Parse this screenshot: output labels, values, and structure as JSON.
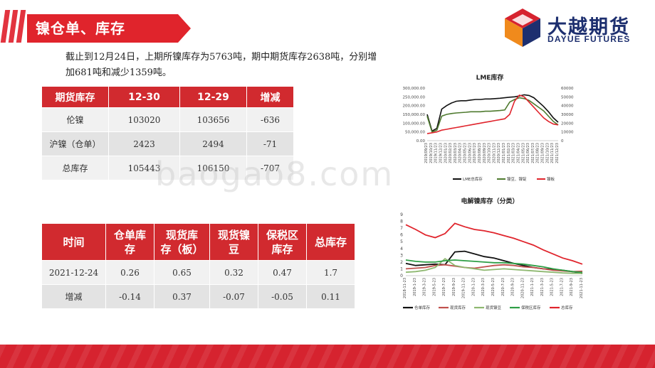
{
  "header": {
    "title": "镍仓单、库存"
  },
  "logo": {
    "cn": "大越期货",
    "en": "DAYUE FUTURES"
  },
  "intro": {
    "line1": "截止到12月24日，上期所镍库存为5763吨，期中期货库存2638吨，分别增",
    "line2": "加681吨和减少1359吨。"
  },
  "futures_table": {
    "headers": [
      "期货库存",
      "12-30",
      "12-29",
      "增减"
    ],
    "rows": [
      [
        "伦镍",
        "103020",
        "103656",
        "-636"
      ],
      [
        "沪镍（仓单）",
        "2423",
        "2494",
        "-71"
      ],
      [
        "总库存",
        "105443",
        "106150",
        "-707"
      ]
    ]
  },
  "spot_table": {
    "headers": [
      [
        "时间"
      ],
      [
        "仓单库",
        "存"
      ],
      [
        "现货库",
        "存（板）"
      ],
      [
        "现货镍",
        "豆"
      ],
      [
        "保税区",
        "库存"
      ],
      [
        "总库存"
      ]
    ],
    "rows": [
      [
        "2021-12-24",
        "0.26",
        "0.65",
        "0.32",
        "0.47",
        "1.7"
      ],
      [
        "增减",
        "-0.14",
        "0.37",
        "-0.07",
        "-0.05",
        "0.11"
      ]
    ]
  },
  "watermark": "baogao8.com",
  "colors": {
    "brand_red": "#d6232f",
    "table_header": "#d12a2f",
    "logo_blue": "#1d2f6f",
    "logo_orange": "#f08a1c"
  },
  "chart_data": [
    {
      "type": "line",
      "title": "LME库存",
      "y_left_ticks": [
        "300,000.00",
        "250,000.00",
        "200,000.00",
        "150,000.00",
        "100,000.00",
        "50,000.00",
        "0.00"
      ],
      "y_right_ticks": [
        "60000",
        "50000",
        "40000",
        "30000",
        "20000",
        "10000",
        "0"
      ],
      "ylim_left": [
        0,
        300000
      ],
      "ylim_right": [
        0,
        60000
      ],
      "x_labels": [
        "2019/09/23",
        "2019/10/23",
        "2019/11/23",
        "2019/12/23",
        "2020/01/23",
        "2020/02/23",
        "2020/03/23",
        "2020/04/23",
        "2020/05/23",
        "2020/06/23",
        "2020/07/23",
        "2020/08/23",
        "2020/09/23",
        "2020/10/23",
        "2020/11/23",
        "2020/12/23",
        "2021/01/23",
        "2021/02/23",
        "2021/03/23",
        "2021/04/23",
        "2021/05/23",
        "2021/06/23",
        "2021/07/23",
        "2021/08/23",
        "2021/09/23",
        "2021/10/23",
        "2021/11/23",
        "2021/12/23"
      ],
      "legend": [
        "LME总库存",
        "镍豆、镍锭",
        "镍板"
      ],
      "series": [
        {
          "name": "LME总库存",
          "axis": "left",
          "color": "#111111",
          "values": [
            150000,
            55000,
            70000,
            180000,
            200000,
            215000,
            225000,
            228000,
            228000,
            232000,
            235000,
            235000,
            238000,
            238000,
            240000,
            242000,
            245000,
            248000,
            250000,
            255000,
            262000,
            258000,
            245000,
            220000,
            195000,
            165000,
            130000,
            105000
          ]
        },
        {
          "name": "镍豆、镍锭",
          "axis": "left",
          "color": "#4e7a2e",
          "values": [
            140000,
            50000,
            60000,
            140000,
            150000,
            155000,
            158000,
            160000,
            162000,
            165000,
            165000,
            165000,
            168000,
            168000,
            170000,
            172000,
            175000,
            220000,
            235000,
            245000,
            240000,
            230000,
            210000,
            190000,
            170000,
            140000,
            110000,
            90000
          ]
        },
        {
          "name": "镍板",
          "axis": "right",
          "color": "#e0242c",
          "values": [
            8000,
            9000,
            10000,
            12000,
            13000,
            14000,
            15000,
            16000,
            17000,
            18000,
            19000,
            20000,
            21000,
            22000,
            23000,
            24000,
            25000,
            30000,
            45000,
            52000,
            50000,
            44000,
            38000,
            32000,
            26000,
            22000,
            19000,
            18000
          ]
        }
      ]
    },
    {
      "type": "line",
      "title": "电解镍库存（分类）",
      "y_ticks": [
        "9",
        "8",
        "7",
        "6",
        "5",
        "4",
        "3",
        "2",
        "1",
        "0"
      ],
      "ylim": [
        0,
        9
      ],
      "x_labels": [
        "2018-11-23",
        "2019-1-23",
        "2019-3-23",
        "2019-5-23",
        "2019-7-23",
        "2019-9-23",
        "2019-11-23",
        "2020-1-23",
        "2020-3-23",
        "2020-5-23",
        "2020-7-23",
        "2020-9-23",
        "2020-11-23",
        "2021-1-23",
        "2021-3-23",
        "2021-5-23",
        "2021-7-23",
        "2021-9-23",
        "2021-11-23"
      ],
      "legend": [
        "仓单库存",
        "现货库存",
        "现货镍豆",
        "保税区库存",
        "总库存"
      ],
      "series": [
        {
          "name": "仓单库存",
          "color": "#111111",
          "values": [
            1.8,
            1.5,
            1.6,
            1.7,
            1.6,
            3.5,
            3.6,
            3.2,
            2.8,
            2.6,
            2.2,
            1.8,
            1.5,
            1.2,
            1.0,
            0.9,
            0.8,
            0.6,
            0.3
          ]
        },
        {
          "name": "现货库存",
          "color": "#c0504d",
          "values": [
            1.0,
            1.1,
            1.2,
            1.5,
            1.6,
            1.4,
            1.2,
            1.1,
            1.3,
            1.5,
            1.6,
            1.5,
            1.3,
            1.2,
            1.0,
            0.8,
            0.7,
            0.6,
            0.65
          ]
        },
        {
          "name": "现货镍豆",
          "color": "#8eb870",
          "values": [
            0.5,
            0.6,
            0.8,
            1.2,
            2.5,
            1.5,
            1.2,
            1.0,
            0.8,
            0.9,
            1.0,
            0.9,
            0.8,
            0.7,
            0.6,
            0.5,
            0.4,
            0.35,
            0.32
          ]
        },
        {
          "name": "保税区库存",
          "color": "#2e9e45",
          "values": [
            2.3,
            2.1,
            2.0,
            2.0,
            2.2,
            2.3,
            2.2,
            2.1,
            2.0,
            1.9,
            1.9,
            1.8,
            1.7,
            1.5,
            1.3,
            1.0,
            0.8,
            0.6,
            0.47
          ]
        },
        {
          "name": "总库存",
          "color": "#e0242c",
          "values": [
            7.5,
            6.8,
            6.0,
            5.6,
            6.2,
            7.7,
            7.2,
            6.8,
            6.6,
            6.3,
            5.9,
            5.5,
            5.0,
            4.5,
            3.8,
            3.2,
            2.6,
            2.2,
            1.7
          ]
        }
      ]
    }
  ]
}
